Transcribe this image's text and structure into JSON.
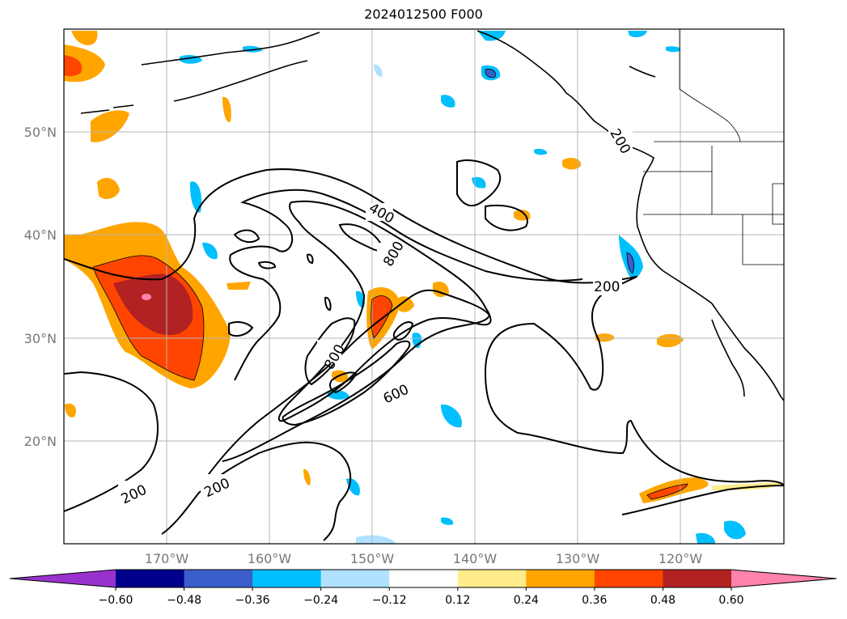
{
  "title": "2024012500 F000",
  "latitude_labels": [
    "50°N",
    "40°N",
    "30°N",
    "20°N"
  ],
  "longitude_labels": [
    "170°W",
    "160°W",
    "150°W",
    "140°W",
    "130°W",
    "120°W"
  ],
  "contour_labels": [
    "400",
    "800",
    "200",
    "800",
    "600",
    "200",
    "200",
    "200"
  ],
  "colorbar": {
    "ticks": [
      "−0.60",
      "−0.48",
      "−0.36",
      "−0.24",
      "−0.12",
      "0.12",
      "0.24",
      "0.36",
      "0.48",
      "0.60"
    ],
    "colors": [
      "#9932cc",
      "#00008b",
      "#3a5fcd",
      "#00bfff",
      "#b0e2ff",
      "#ffffff",
      "#ffec8b",
      "#ffa500",
      "#ff4500",
      "#b22222",
      "#ff82ab"
    ],
    "extend": "both"
  }
}
